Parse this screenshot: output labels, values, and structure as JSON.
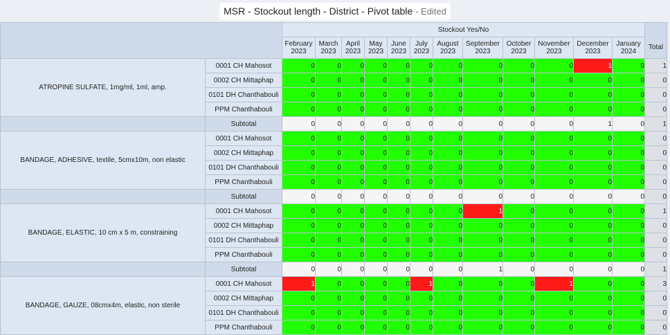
{
  "title": {
    "name": "MSR - Stockout length - District - Pivot table",
    "status": "- Edited"
  },
  "table": {
    "measure": "Stockout Yes/No",
    "total_label": "Total",
    "subtotal_label": "Subtotal",
    "periods": [
      {
        "month": "February",
        "year": "2023"
      },
      {
        "month": "March",
        "year": "2023"
      },
      {
        "month": "April",
        "year": "2023"
      },
      {
        "month": "May",
        "year": "2023"
      },
      {
        "month": "June",
        "year": "2023"
      },
      {
        "month": "July",
        "year": "2023"
      },
      {
        "month": "August",
        "year": "2023"
      },
      {
        "month": "September",
        "year": "2023"
      },
      {
        "month": "October",
        "year": "2023"
      },
      {
        "month": "November",
        "year": "2023"
      },
      {
        "month": "December",
        "year": "2023"
      },
      {
        "month": "January",
        "year": "2024"
      }
    ],
    "items": [
      {
        "name": "ATROPINE SULFATE, 1mg/ml, 1ml, amp.",
        "rows": [
          {
            "org": "0001 CH Mahosot",
            "values": [
              "0",
              "0",
              "0",
              "0",
              "0",
              "0",
              "0",
              "0",
              "0",
              "0",
              "1",
              "0"
            ],
            "total": "1"
          },
          {
            "org": "0002 CH Mittaphap",
            "values": [
              "0",
              "0",
              "0",
              "0",
              "0",
              "0",
              "0",
              "0",
              "0",
              "0",
              "0",
              "0"
            ],
            "total": "0"
          },
          {
            "org": "0101 DH Chanthabouli",
            "values": [
              "0",
              "0",
              "0",
              "0",
              "0",
              "0",
              "0",
              "0",
              "0",
              "0",
              "0",
              "0"
            ],
            "total": "0"
          },
          {
            "org": "PPM Chanthabouli",
            "values": [
              "0",
              "0",
              "0",
              "0",
              "0",
              "0",
              "0",
              "0",
              "0",
              "0",
              "0",
              "0"
            ],
            "total": "0"
          }
        ],
        "subtotal": {
          "values": [
            "0",
            "0",
            "0",
            "0",
            "0",
            "0",
            "0",
            "0",
            "0",
            "0",
            "1",
            "0"
          ],
          "total": "1"
        }
      },
      {
        "name": "BANDAGE, ADHESIVE, textile, 5cmx10m, non elastic",
        "rows": [
          {
            "org": "0001 CH Mahosot",
            "values": [
              "0",
              "0",
              "0",
              "0",
              "0",
              "0",
              "0",
              "0",
              "0",
              "0",
              "0",
              "0"
            ],
            "total": "0"
          },
          {
            "org": "0002 CH Mittaphap",
            "values": [
              "0",
              "0",
              "0",
              "0",
              "0",
              "0",
              "0",
              "0",
              "0",
              "0",
              "0",
              "0"
            ],
            "total": "0"
          },
          {
            "org": "0101 DH Chanthabouli",
            "values": [
              "0",
              "0",
              "0",
              "0",
              "0",
              "0",
              "0",
              "0",
              "0",
              "0",
              "0",
              "0"
            ],
            "total": "0"
          },
          {
            "org": "PPM Chanthabouli",
            "values": [
              "0",
              "0",
              "0",
              "0",
              "0",
              "0",
              "0",
              "0",
              "0",
              "0",
              "0",
              "0"
            ],
            "total": "0"
          }
        ],
        "subtotal": {
          "values": [
            "0",
            "0",
            "0",
            "0",
            "0",
            "0",
            "0",
            "0",
            "0",
            "0",
            "0",
            "0"
          ],
          "total": "0"
        }
      },
      {
        "name": "BANDAGE, ELASTIC, 10 cm x 5 m, constraining",
        "rows": [
          {
            "org": "0001 CH Mahosot",
            "values": [
              "0",
              "0",
              "0",
              "0",
              "0",
              "0",
              "0",
              "1",
              "0",
              "0",
              "0",
              "0"
            ],
            "total": "1"
          },
          {
            "org": "0002 CH Mittaphap",
            "values": [
              "0",
              "0",
              "0",
              "0",
              "0",
              "0",
              "0",
              "0",
              "0",
              "0",
              "0",
              "0"
            ],
            "total": "0"
          },
          {
            "org": "0101 DH Chanthabouli",
            "values": [
              "0",
              "0",
              "0",
              "0",
              "0",
              "0",
              "0",
              "0",
              "0",
              "0",
              "0",
              "0"
            ],
            "total": "0"
          },
          {
            "org": "PPM Chanthabouli",
            "values": [
              "0",
              "0",
              "0",
              "0",
              "0",
              "0",
              "0",
              "0",
              "0",
              "0",
              "0",
              "0"
            ],
            "total": "0"
          }
        ],
        "subtotal": {
          "values": [
            "0",
            "0",
            "0",
            "0",
            "0",
            "0",
            "0",
            "1",
            "0",
            "0",
            "0",
            "0"
          ],
          "total": "1"
        }
      },
      {
        "name": "BANDAGE, GAUZE, 08cmx4m, elastic, non sterile",
        "rows": [
          {
            "org": "0001 CH Mahosot",
            "values": [
              "1",
              "0",
              "0",
              "0",
              "0",
              "1",
              "0",
              "0",
              "0",
              "1",
              "0",
              "0"
            ],
            "total": "3"
          },
          {
            "org": "0002 CH Mittaphap",
            "values": [
              "0",
              "0",
              "0",
              "0",
              "0",
              "0",
              "0",
              "0",
              "0",
              "0",
              "0",
              "0"
            ],
            "total": "0"
          },
          {
            "org": "0101 DH Chanthabouli",
            "values": [
              "0",
              "0",
              "0",
              "0",
              "0",
              "0",
              "0",
              "0",
              "0",
              "0",
              "0",
              "0"
            ],
            "total": "0"
          },
          {
            "org": "PPM Chanthabouli",
            "values": [
              "0",
              "0",
              "0",
              "0",
              "0",
              "0",
              "0",
              "0",
              "0",
              "0",
              "0",
              "0"
            ],
            "total": "0"
          }
        ]
      }
    ]
  },
  "colors": {
    "in_stock": "#22ff00",
    "stockout": "#ff1a1a",
    "subtotal_cell": "#f5f5f5",
    "header_bg": "#dde7f3"
  }
}
